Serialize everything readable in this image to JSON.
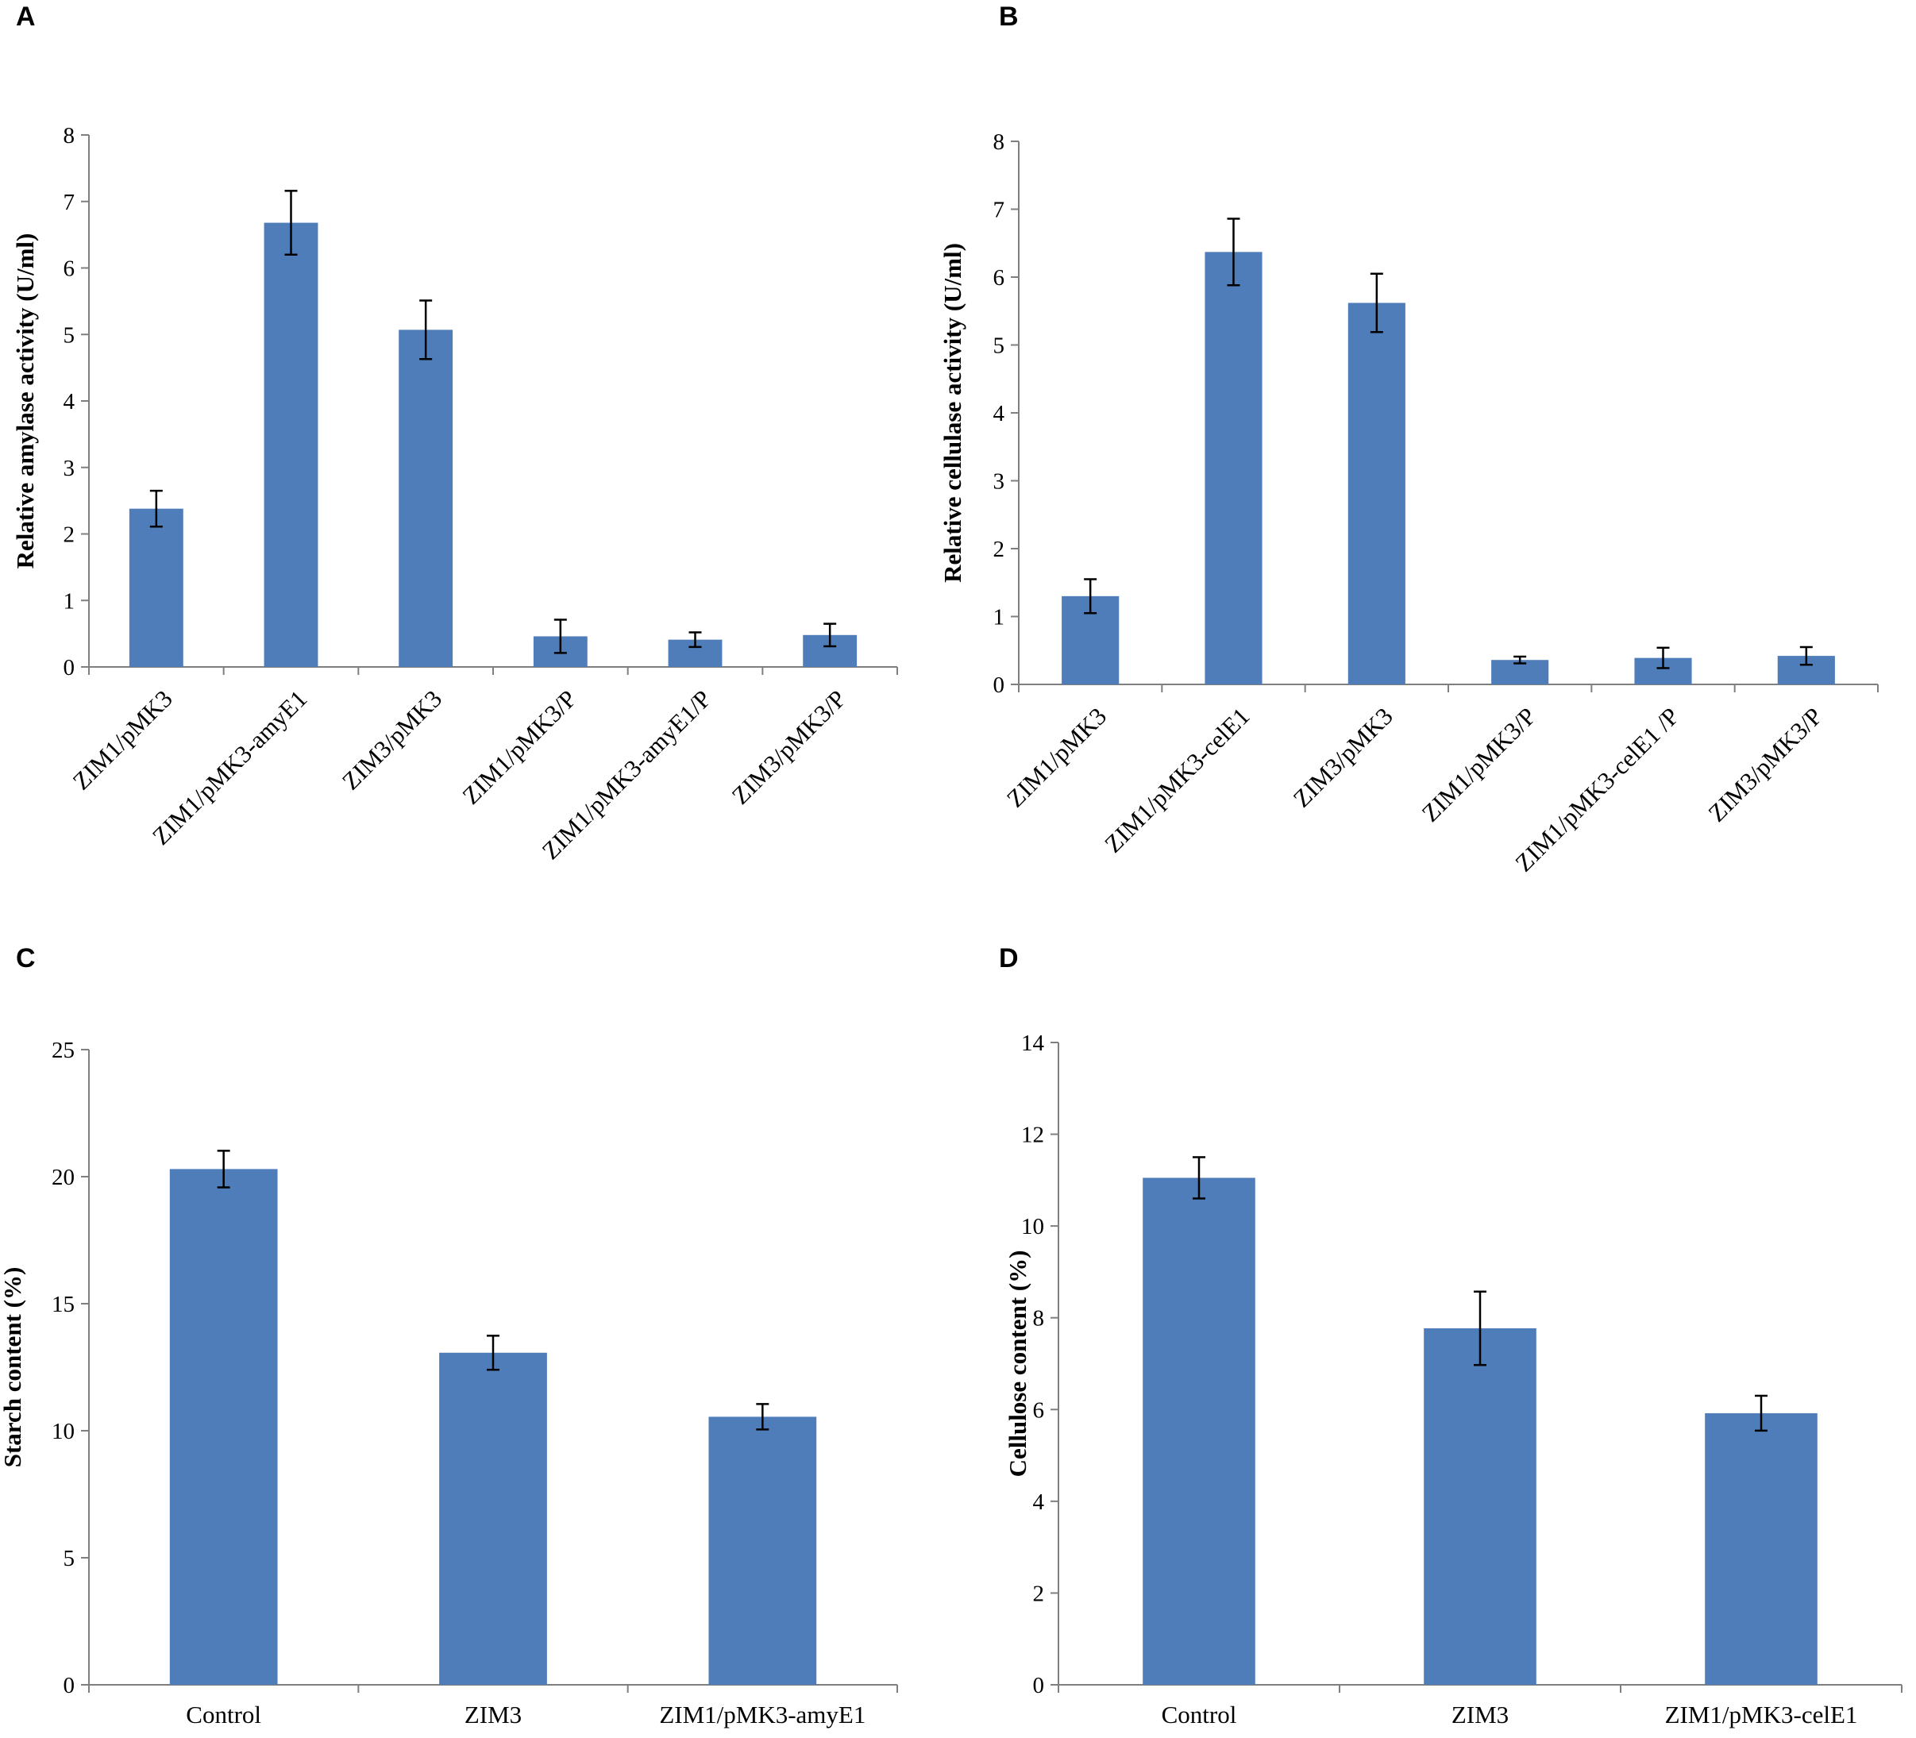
{
  "colors": {
    "bar": "#4f7db9",
    "axis": "#7f7f7f"
  },
  "chart_data": [
    {
      "id": "A",
      "panel_letter": "A",
      "type": "bar",
      "ylabel": "Relative amylase activity (U/ml)",
      "xlabel": "",
      "ylim": [
        0,
        8
      ],
      "yticks": [
        0,
        1,
        2,
        3,
        4,
        5,
        6,
        7,
        8
      ],
      "categories": [
        "ZIM1/pMK3",
        "ZIM1/pMK3-amyE1",
        "ZIM3/pMK3",
        "ZIM1/pMK3/P",
        "ZIM1/pMK3-amyE1/P",
        "ZIM3/pMK3/P"
      ],
      "values": [
        2.38,
        6.68,
        5.07,
        0.46,
        0.41,
        0.48
      ],
      "errors": [
        0.27,
        0.48,
        0.44,
        0.25,
        0.11,
        0.17
      ],
      "label_rotation": "rotated",
      "grid": false
    },
    {
      "id": "B",
      "panel_letter": "B",
      "type": "bar",
      "ylabel": "Relative cellulase activity (U/ml)",
      "xlabel": "",
      "ylim": [
        0,
        8
      ],
      "yticks": [
        0,
        1,
        2,
        3,
        4,
        5,
        6,
        7,
        8
      ],
      "categories": [
        "ZIM1/pMK3",
        "ZIM1/pMK3-celE1",
        "ZIM3/pMK3",
        "ZIM1/pMK3/P",
        "ZIM1/pMK3-celE1 /P",
        "ZIM3/pMK3/P"
      ],
      "values": [
        1.3,
        6.37,
        5.62,
        0.36,
        0.39,
        0.42
      ],
      "errors": [
        0.25,
        0.49,
        0.43,
        0.05,
        0.15,
        0.13
      ],
      "label_rotation": "rotated",
      "grid": false
    },
    {
      "id": "C",
      "panel_letter": "C",
      "type": "bar",
      "ylabel": "Starch content (%)",
      "xlabel": "",
      "ylim": [
        0,
        25
      ],
      "yticks": [
        0,
        5,
        10,
        15,
        20,
        25
      ],
      "categories": [
        "Control",
        "ZIM3",
        "ZIM1/pMK3-amyE1"
      ],
      "values": [
        20.3,
        13.07,
        10.55
      ],
      "errors": [
        0.72,
        0.67,
        0.5
      ],
      "label_rotation": "horizontal",
      "grid": false
    },
    {
      "id": "D",
      "panel_letter": "D",
      "type": "bar",
      "ylabel": "Cellulose content (%)",
      "xlabel": "",
      "ylim": [
        0,
        14
      ],
      "yticks": [
        0,
        2,
        4,
        6,
        8,
        10,
        12,
        14
      ],
      "categories": [
        "Control",
        "ZIM3",
        "ZIM1/pMK3-celE1"
      ],
      "values": [
        11.05,
        7.77,
        5.92
      ],
      "errors": [
        0.45,
        0.8,
        0.38
      ],
      "label_rotation": "horizontal",
      "grid": false
    }
  ]
}
